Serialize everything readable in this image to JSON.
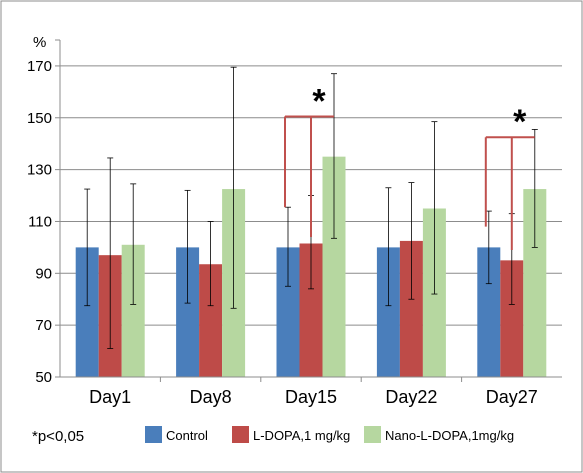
{
  "chart_data": {
    "type": "bar",
    "ylabel": "%",
    "ylim": [
      50,
      180
    ],
    "yticks": [
      50,
      70,
      90,
      110,
      130,
      150,
      170
    ],
    "grid": "horizontal",
    "legend_position": "bottom",
    "categories": [
      "Day1",
      "Day8",
      "Day15",
      "Day22",
      "Day27"
    ],
    "series": [
      {
        "name": "Control",
        "color": "#4A7EBB",
        "values": [
          100,
          100,
          100,
          100,
          100
        ],
        "error_low": [
          77.5,
          78.5,
          85,
          77.5,
          86
        ],
        "error_high": [
          122.5,
          122,
          115.5,
          123,
          114
        ]
      },
      {
        "name": "L-DOPA,1 mg/kg",
        "color": "#BE4B48",
        "values": [
          97,
          93.5,
          101.5,
          102.5,
          95
        ],
        "error_low": [
          61,
          77.5,
          84,
          80,
          78
        ],
        "error_high": [
          134.5,
          110,
          120,
          125,
          113
        ]
      },
      {
        "name": "Nano-L-DOPA,1mg/kg",
        "color": "#B6D7A0",
        "values": [
          101,
          122.5,
          135,
          115,
          122.5
        ],
        "error_low": [
          78,
          76.5,
          103.5,
          82,
          100
        ],
        "error_high": [
          124.5,
          169.5,
          167,
          148.5,
          145.5
        ]
      }
    ],
    "annotations": [
      {
        "text": "*",
        "category": "Day15"
      },
      {
        "text": "*",
        "category": "Day27"
      }
    ],
    "footnote": "*p<0,05"
  }
}
